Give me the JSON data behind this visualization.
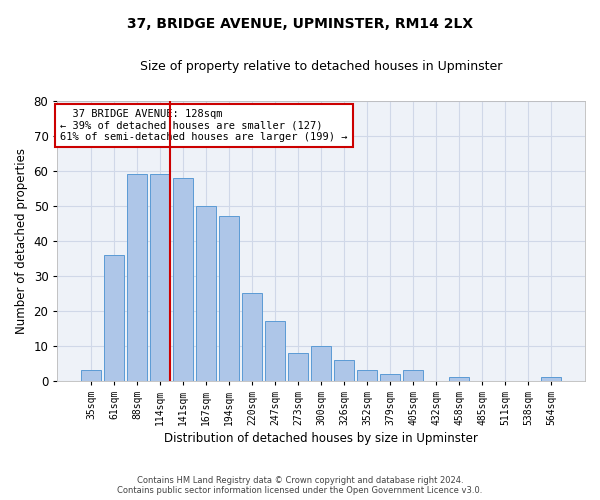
{
  "title": "37, BRIDGE AVENUE, UPMINSTER, RM14 2LX",
  "subtitle": "Size of property relative to detached houses in Upminster",
  "xlabel": "Distribution of detached houses by size in Upminster",
  "ylabel": "Number of detached properties",
  "categories": [
    "35sqm",
    "61sqm",
    "88sqm",
    "114sqm",
    "141sqm",
    "167sqm",
    "194sqm",
    "220sqm",
    "247sqm",
    "273sqm",
    "300sqm",
    "326sqm",
    "352sqm",
    "379sqm",
    "405sqm",
    "432sqm",
    "458sqm",
    "485sqm",
    "511sqm",
    "538sqm",
    "564sqm"
  ],
  "values": [
    3,
    36,
    59,
    59,
    58,
    50,
    47,
    25,
    17,
    8,
    10,
    6,
    3,
    2,
    3,
    0,
    1,
    0,
    0,
    0,
    1
  ],
  "bar_color": "#aec6e8",
  "bar_edge_color": "#5b9bd5",
  "ylim": [
    0,
    80
  ],
  "yticks": [
    0,
    10,
    20,
    30,
    40,
    50,
    60,
    70,
    80
  ],
  "property_bin_index": 3,
  "vline_color": "#cc0000",
  "annotation_text": "  37 BRIDGE AVENUE: 128sqm\n← 39% of detached houses are smaller (127)\n61% of semi-detached houses are larger (199) →",
  "annotation_box_color": "#ffffff",
  "annotation_box_edge": "#cc0000",
  "grid_color": "#d0d8e8",
  "background_color": "#eef2f8",
  "footer_line1": "Contains HM Land Registry data © Crown copyright and database right 2024.",
  "footer_line2": "Contains public sector information licensed under the Open Government Licence v3.0."
}
